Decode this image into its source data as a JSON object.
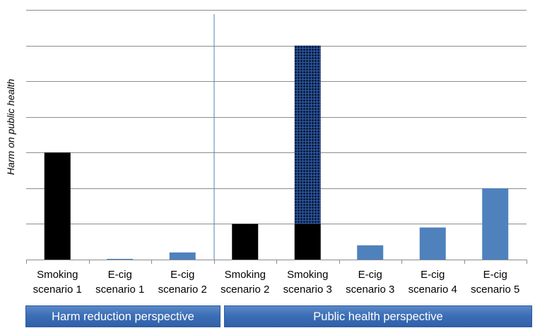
{
  "chart_data": {
    "type": "bar",
    "ylabel": "Harm on public health",
    "xlabel": "",
    "categories": [
      {
        "line1": "Smoking",
        "line2": "scenario 1"
      },
      {
        "line1": "E-cig",
        "line2": "scenario 1"
      },
      {
        "line1": "E-cig",
        "line2": "scenario 2"
      },
      {
        "line1": "Smoking",
        "line2": "scenario 2"
      },
      {
        "line1": "Smoking",
        "line2": "scenario 3"
      },
      {
        "line1": "E-cig",
        "line2": "scenario 3"
      },
      {
        "line1": "E-cig",
        "line2": "scenario 4"
      },
      {
        "line1": "E-cig",
        "line2": "scenario 5"
      }
    ],
    "values": [
      3.0,
      0.02,
      0.2,
      1.0,
      6.0,
      0.4,
      0.9,
      2.0
    ],
    "stacked_lower": [
      null,
      null,
      null,
      null,
      1.0,
      null,
      null,
      null
    ],
    "styles": [
      "smoking",
      "ecig",
      "ecig",
      "smoking",
      "smoking-hatched",
      "ecig",
      "ecig",
      "ecig"
    ],
    "ylim": [
      0,
      7
    ],
    "gridlines": [
      1,
      2,
      3,
      4,
      5,
      6,
      7
    ],
    "grid": true,
    "colors": {
      "smoking": "#000000",
      "ecig": "#4f81bd",
      "hatch_bg": "#0d1f40",
      "hatch_line": "#2f5dab",
      "grid": "#8c8c8c",
      "divider": "#4f81bd"
    },
    "groups": [
      {
        "label": "Harm reduction perspective"
      },
      {
        "label": "Public health perspective"
      }
    ]
  }
}
